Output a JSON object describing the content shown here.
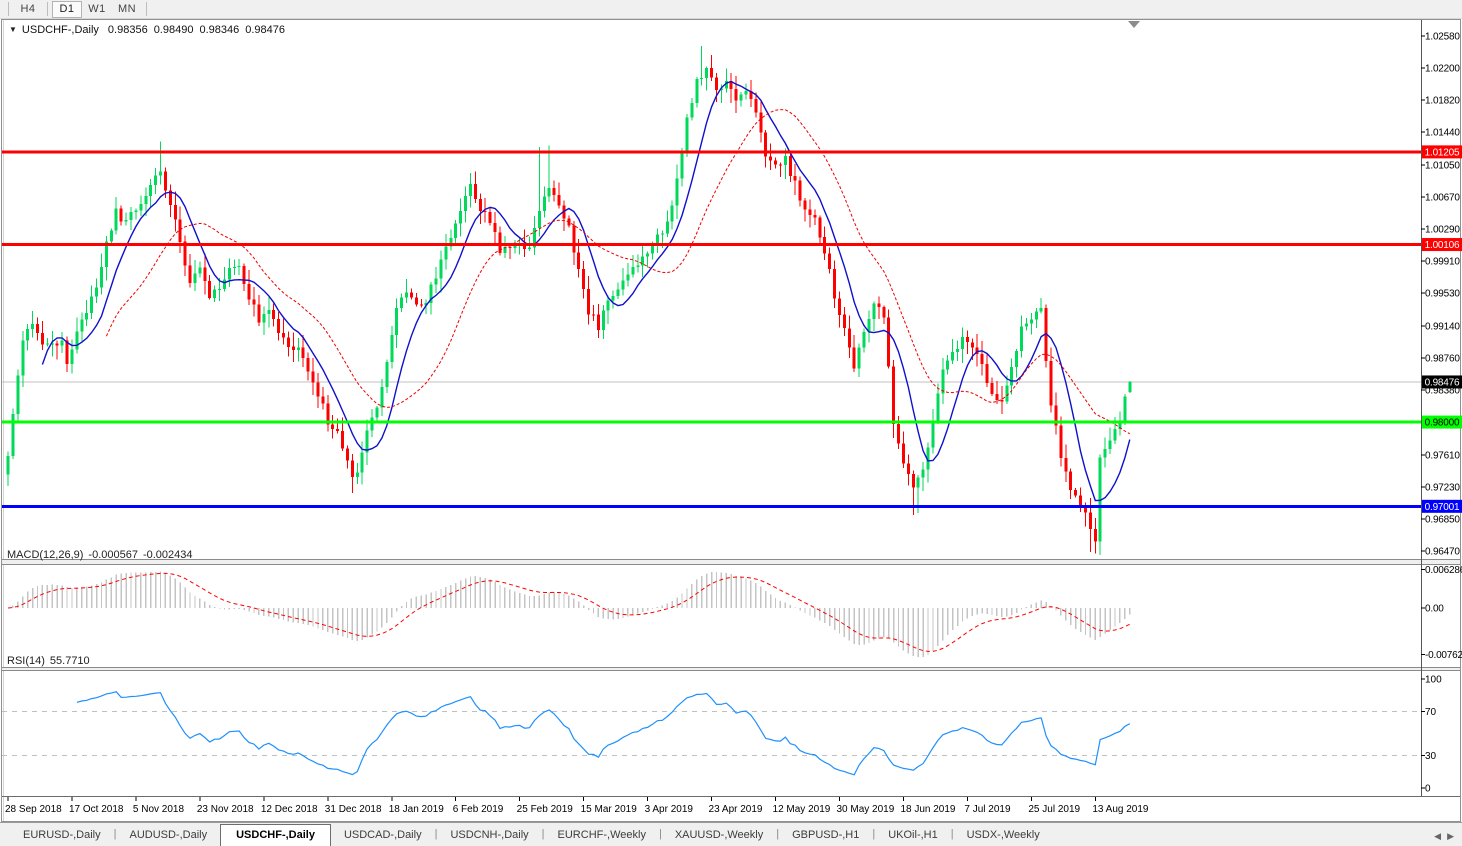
{
  "toolbar": {
    "timeframe_buttons": [
      {
        "label": "H4",
        "active": false
      },
      {
        "label": "D1",
        "active": true
      },
      {
        "label": "W1",
        "active": false
      },
      {
        "label": "MN",
        "active": false
      }
    ]
  },
  "chart_header": {
    "symbol": "USDCHF-,Daily",
    "open": "0.98356",
    "high": "0.98490",
    "low": "0.98346",
    "close": "0.98476"
  },
  "indicators": {
    "macd": {
      "label": "MACD(12,26,9)",
      "main_value": "-0.000567",
      "signal_value": "-0.002434"
    },
    "rsi": {
      "label": "RSI(14)",
      "value": "55.7710"
    }
  },
  "chart_data": {
    "type": "candlestick",
    "symbol": "USDCHF",
    "timeframe": "Daily",
    "title": "USDCHF-,Daily  0.98356 0.98490 0.98346 0.98476",
    "n_candles": 229,
    "visible_price_range": [
      0.96388,
      1.0271
    ],
    "y_axis_ticks": [
      1.0258,
      1.022,
      1.0182,
      1.0144,
      1.0105,
      1.0067,
      1.0029,
      0.9991,
      0.9953,
      0.9914,
      0.9876,
      0.9838,
      0.9761,
      0.9723,
      0.9685,
      0.9647
    ],
    "x_label_step": 13,
    "x_axis_labels": [
      "28 Sep 2018",
      "17 Oct 2018",
      "5 Nov 2018",
      "23 Nov 2018",
      "12 Dec 2018",
      "31 Dec 2018",
      "18 Jan 2019",
      "6 Feb 2019",
      "25 Feb 2019",
      "15 Mar 2019",
      "3 Apr 2019",
      "23 Apr 2019",
      "12 May 2019",
      "30 May 2019",
      "18 Jun 2019",
      "7 Jul 2019",
      "25 Jul 2019",
      "13 Aug 2019"
    ],
    "horizontal_lines": [
      {
        "name": "resistance-upper",
        "price": 1.01205,
        "color": "#ff0000",
        "width": 3,
        "label_bg": "#ff0000",
        "label_fg": "#ffffff"
      },
      {
        "name": "resistance-lower",
        "price": 1.00106,
        "color": "#ff0000",
        "width": 3,
        "label_bg": "#ff0000",
        "label_fg": "#ffffff"
      },
      {
        "name": "support-green",
        "price": 0.98,
        "color": "#00ff00",
        "width": 3,
        "label_bg": "#00ff00",
        "label_fg": "#000000"
      },
      {
        "name": "support-blue",
        "price": 0.97001,
        "color": "#0000ff",
        "width": 3,
        "label_bg": "#0000ff",
        "label_fg": "#ffffff"
      }
    ],
    "current_price": {
      "value": 0.98476,
      "label_bg": "#000000",
      "label_fg": "#ffffff",
      "line_color": "#c0c0c0"
    },
    "last_candle": {
      "open": 0.98356,
      "high": 0.9849,
      "low": 0.98346,
      "close": 0.98476
    },
    "close_anchors": [
      [
        0,
        0.976
      ],
      [
        1,
        0.9812
      ],
      [
        3,
        0.99
      ],
      [
        5,
        0.9912
      ],
      [
        7,
        0.9895
      ],
      [
        9,
        0.9888
      ],
      [
        11,
        0.9902
      ],
      [
        12,
        0.987
      ],
      [
        14,
        0.9906
      ],
      [
        16,
        0.993
      ],
      [
        18,
        0.9958
      ],
      [
        20,
        1.0012
      ],
      [
        22,
        1.0048
      ],
      [
        24,
        1.0035
      ],
      [
        26,
        1.0055
      ],
      [
        28,
        1.007
      ],
      [
        30,
        1.0088
      ],
      [
        31,
        1.0095
      ],
      [
        33,
        1.006
      ],
      [
        35,
        1.0012
      ],
      [
        37,
        0.9968
      ],
      [
        39,
        0.9988
      ],
      [
        41,
        0.9948
      ],
      [
        43,
        0.9962
      ],
      [
        45,
        0.998
      ],
      [
        47,
        0.9986
      ],
      [
        49,
        0.9946
      ],
      [
        51,
        0.9922
      ],
      [
        53,
        0.9934
      ],
      [
        55,
        0.9908
      ],
      [
        57,
        0.9886
      ],
      [
        59,
        0.9893
      ],
      [
        61,
        0.9862
      ],
      [
        63,
        0.9833
      ],
      [
        65,
        0.9802
      ],
      [
        67,
        0.9792
      ],
      [
        69,
        0.975
      ],
      [
        70,
        0.973
      ],
      [
        71,
        0.9738
      ],
      [
        73,
        0.9792
      ],
      [
        75,
        0.9822
      ],
      [
        77,
        0.987
      ],
      [
        79,
        0.9938
      ],
      [
        81,
        0.9952
      ],
      [
        83,
        0.9936
      ],
      [
        85,
        0.9946
      ],
      [
        87,
        0.9972
      ],
      [
        89,
        1.001
      ],
      [
        91,
        1.0032
      ],
      [
        93,
        1.0072
      ],
      [
        94,
        1.0084
      ],
      [
        96,
        1.0052
      ],
      [
        98,
        1.0038
      ],
      [
        100,
        1.0006
      ],
      [
        102,
        1.0012
      ],
      [
        104,
        1.0014
      ],
      [
        106,
        1.0004
      ],
      [
        108,
        1.0052
      ],
      [
        110,
        1.0082
      ],
      [
        112,
        1.006
      ],
      [
        114,
        1.003
      ],
      [
        116,
        0.9982
      ],
      [
        118,
        0.9932
      ],
      [
        120,
        0.9914
      ],
      [
        122,
        0.9942
      ],
      [
        124,
        0.9958
      ],
      [
        126,
        0.998
      ],
      [
        128,
        0.9988
      ],
      [
        130,
        1.0
      ],
      [
        132,
        1.0018
      ],
      [
        134,
        1.0036
      ],
      [
        136,
        1.0088
      ],
      [
        138,
        1.0158
      ],
      [
        140,
        1.0202
      ],
      [
        142,
        1.022
      ],
      [
        144,
        1.0194
      ],
      [
        146,
        1.0202
      ],
      [
        148,
        1.0178
      ],
      [
        150,
        1.0194
      ],
      [
        152,
        1.017
      ],
      [
        154,
        1.0118
      ],
      [
        156,
        1.01
      ],
      [
        158,
        1.0112
      ],
      [
        160,
        1.0082
      ],
      [
        162,
        1.0052
      ],
      [
        164,
        1.004
      ],
      [
        166,
        1.0004
      ],
      [
        168,
        0.995
      ],
      [
        170,
        0.9908
      ],
      [
        172,
        0.9862
      ],
      [
        174,
        0.991
      ],
      [
        176,
        0.9944
      ],
      [
        178,
        0.992
      ],
      [
        180,
        0.9802
      ],
      [
        182,
        0.9748
      ],
      [
        184,
        0.9718
      ],
      [
        186,
        0.9742
      ],
      [
        188,
        0.9802
      ],
      [
        190,
        0.986
      ],
      [
        192,
        0.9878
      ],
      [
        194,
        0.9896
      ],
      [
        196,
        0.989
      ],
      [
        198,
        0.9872
      ],
      [
        200,
        0.9832
      ],
      [
        202,
        0.9826
      ],
      [
        204,
        0.9864
      ],
      [
        206,
        0.991
      ],
      [
        208,
        0.9924
      ],
      [
        210,
        0.9932
      ],
      [
        212,
        0.9822
      ],
      [
        214,
        0.9762
      ],
      [
        216,
        0.972
      ],
      [
        218,
        0.9702
      ],
      [
        220,
        0.9674
      ],
      [
        221,
        0.966
      ],
      [
        222,
        0.9756
      ],
      [
        224,
        0.9774
      ],
      [
        226,
        0.9802
      ],
      [
        227,
        0.9826
      ],
      [
        228,
        0.98476
      ]
    ],
    "wick_spikes": [
      {
        "i": 31,
        "high": 1.0133
      },
      {
        "i": 108,
        "high": 1.0126
      },
      {
        "i": 110,
        "high": 1.0128
      },
      {
        "i": 141,
        "high": 1.0246
      },
      {
        "i": 70,
        "low": 0.9716
      },
      {
        "i": 184,
        "low": 0.969
      },
      {
        "i": 185,
        "low": 0.9692
      },
      {
        "i": 220,
        "low": 0.9646
      },
      {
        "i": 221,
        "low": 0.9652
      }
    ],
    "moving_averages": [
      {
        "name": "ma-fast",
        "period": 8,
        "color": "#1010cc",
        "style": "solid"
      },
      {
        "name": "ma-slow",
        "period": 21,
        "color": "#ee0000",
        "style": "dashed"
      }
    ],
    "macd": {
      "fast": 12,
      "slow": 26,
      "signal": 9,
      "main_value": -0.000567,
      "signal_value": -0.002434,
      "axis_ticks": [
        {
          "value": 0.006286,
          "label": "0.006286"
        },
        {
          "value": 0,
          "label": "0.00"
        },
        {
          "value": -0.00762,
          "label": "-0.00762"
        }
      ],
      "histogram_color": "#c4c4c4",
      "signal_color": "#ff0000"
    },
    "rsi": {
      "period": 14,
      "value": 55.771,
      "axis_ticks": [
        100,
        70,
        30,
        0
      ],
      "levels": [
        70,
        30
      ],
      "line_color": "#1e90ff",
      "level_color": "#c0c0c0"
    },
    "colors": {
      "bull": "#00d95a",
      "bear": "#ff0000",
      "background": "#ffffff",
      "axis_text": "#000000"
    }
  },
  "tabbar": {
    "tabs": [
      {
        "label": "EURUSD-,Daily",
        "active": false
      },
      {
        "label": "AUDUSD-,Daily",
        "active": false
      },
      {
        "label": "USDCHF-,Daily",
        "active": true
      },
      {
        "label": "USDCAD-,Daily",
        "active": false
      },
      {
        "label": "USDCNH-,Daily",
        "active": false
      },
      {
        "label": "EURCHF-,Weekly",
        "active": false
      },
      {
        "label": "XAUUSD-,Weekly",
        "active": false
      },
      {
        "label": "GBPUSD-,H1",
        "active": false
      },
      {
        "label": "UKOil-,H1",
        "active": false
      },
      {
        "label": "USDX-,Weekly",
        "active": false
      }
    ],
    "scroll_left": "◀",
    "scroll_right": "▶"
  }
}
